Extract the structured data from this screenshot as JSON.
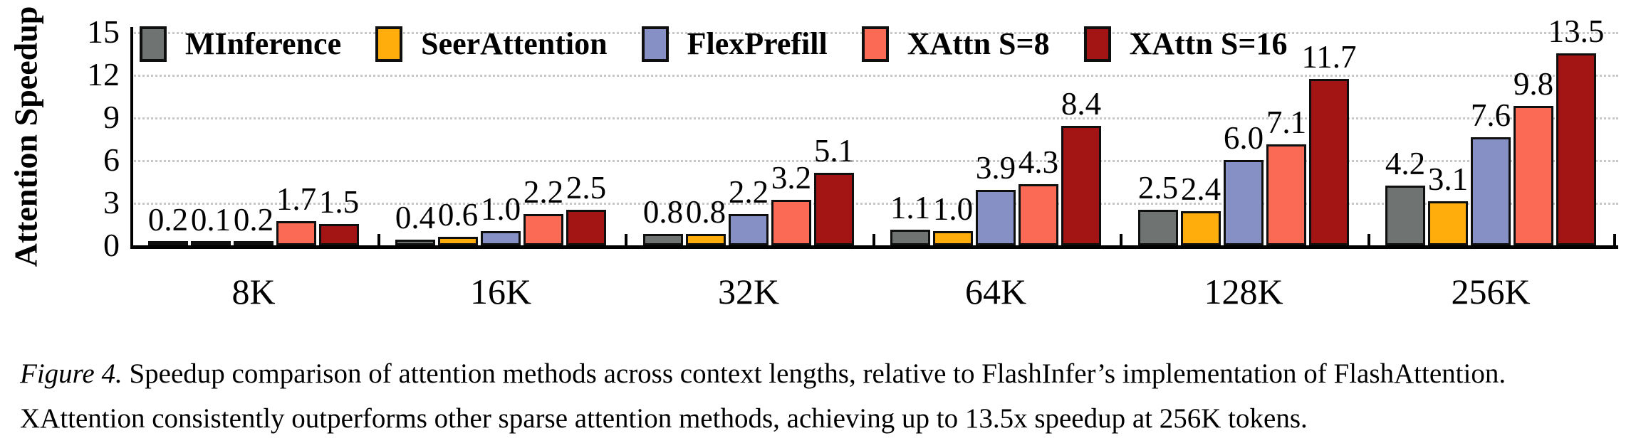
{
  "chart_data": {
    "type": "bar",
    "title": "",
    "xlabel": "",
    "ylabel": "Attention Speedup",
    "ylim": [
      0,
      15
    ],
    "yticks": [
      0,
      3,
      6,
      9,
      12,
      15
    ],
    "grid": true,
    "legend_position": "top-left-inside",
    "categories": [
      "8K",
      "16K",
      "32K",
      "64K",
      "128K",
      "256K"
    ],
    "series": [
      {
        "name": "MInference",
        "color": "#6F7472",
        "values": [
          0.2,
          0.4,
          0.8,
          1.1,
          2.5,
          4.2
        ]
      },
      {
        "name": "SeerAttention",
        "color": "#FFAD0D",
        "values": [
          0.1,
          0.6,
          0.8,
          1.0,
          2.4,
          3.1
        ]
      },
      {
        "name": "FlexPrefill",
        "color": "#8690C5",
        "values": [
          0.2,
          1.0,
          2.2,
          3.9,
          6.0,
          7.6
        ]
      },
      {
        "name": "XAttn S=8",
        "color": "#FA6A55",
        "values": [
          1.7,
          2.2,
          3.2,
          4.3,
          7.1,
          9.8
        ]
      },
      {
        "name": "XAttn S=16",
        "color": "#A31414",
        "values": [
          1.5,
          2.5,
          5.1,
          8.4,
          11.7,
          13.5
        ]
      }
    ]
  },
  "caption": {
    "figure_label": "Figure 4.",
    "line1": "Speedup comparison of attention methods across context lengths, relative to FlashInfer’s implementation of FlashAttention.",
    "line2": "XAttention consistently outperforms other sparse attention methods, achieving up to 13.5x speedup at 256K tokens."
  },
  "colors": {
    "axis": "#000000",
    "gridline": "#c7c7c7",
    "bar_border": "#0f0f0f"
  }
}
